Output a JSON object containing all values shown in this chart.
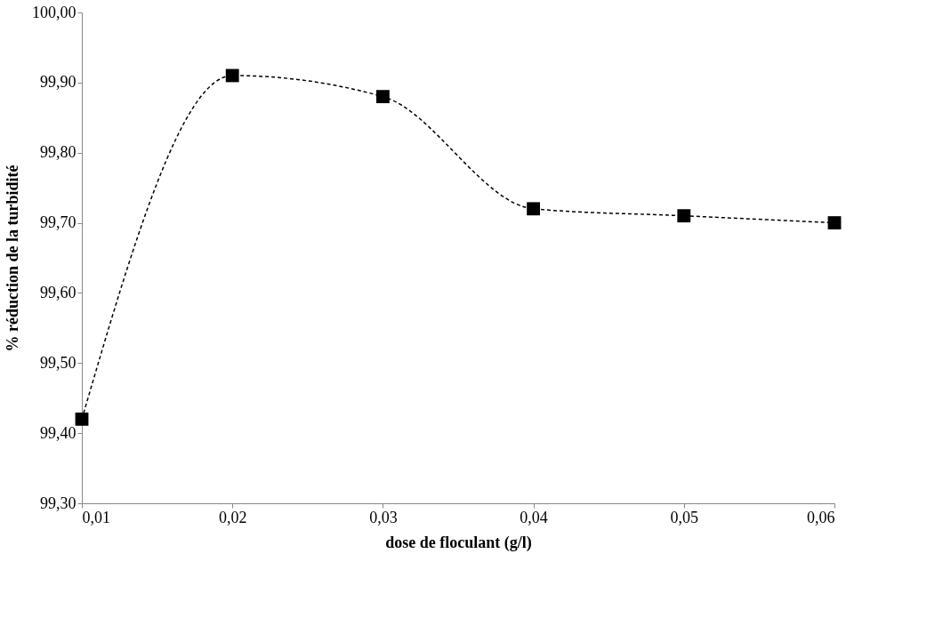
{
  "chart_data": {
    "type": "line",
    "xlabel": "dose de floculant (g/l)",
    "ylabel": "% réduction de la turbidité",
    "x": [
      0.01,
      0.02,
      0.03,
      0.04,
      0.05,
      0.06
    ],
    "series": [
      {
        "color": "#000000",
        "values": [
          99.42,
          99.91,
          99.88,
          99.72,
          99.71,
          99.7
        ]
      }
    ],
    "xlim": [
      0.01,
      0.06
    ],
    "xticks": [
      {
        "value": 0.01,
        "label": "0,01"
      },
      {
        "value": 0.02,
        "label": "0,02"
      },
      {
        "value": 0.03,
        "label": "0,03"
      },
      {
        "value": 0.04,
        "label": "0,04"
      },
      {
        "value": 0.05,
        "label": "0,05"
      },
      {
        "value": 0.06,
        "label": "0,06"
      }
    ],
    "ylim": [
      99.3,
      100.0
    ],
    "yticks": [
      {
        "value": 99.3,
        "label": "99,30"
      },
      {
        "value": 99.4,
        "label": "99,40"
      },
      {
        "value": 99.5,
        "label": "99,50"
      },
      {
        "value": 99.6,
        "label": "99,60"
      },
      {
        "value": 99.7,
        "label": "99,70"
      },
      {
        "value": 99.8,
        "label": "99,80"
      },
      {
        "value": 99.9,
        "label": "99,90"
      },
      {
        "value": 100.0,
        "label": "100,00"
      }
    ],
    "grid": false,
    "marker": "square",
    "line_style": "dashed"
  }
}
